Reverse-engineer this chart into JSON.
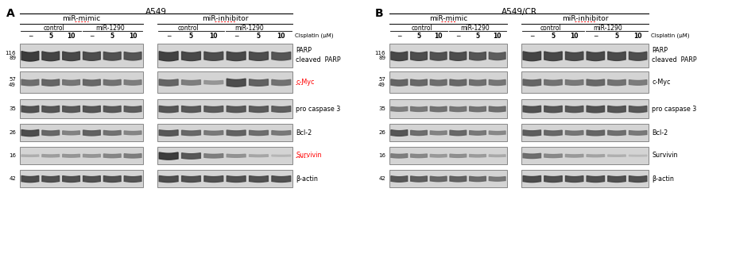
{
  "panel_A_title": "A549",
  "panel_B_title": "A549/CR",
  "panel_label_A": "A",
  "panel_label_B": "B",
  "mimic_label": "miR-mimic",
  "inhibitor_label": "miR-inhibitor",
  "control_label": "control",
  "mir1290_label": "miR-1290",
  "cisplatin_label": "Cisplatin (μM)",
  "dose_labels": [
    "−",
    "5",
    "10",
    "−",
    "5",
    "10"
  ],
  "protein_labels_line1": [
    "PARP",
    "c-Myc",
    "pro caspase 3",
    "Bcl-2",
    "Survivin",
    "β-actin"
  ],
  "protein_labels_line2": [
    "cleaved  PARP",
    "",
    "",
    "",
    "",
    ""
  ],
  "mw_labels": [
    "116\n89",
    "57\n49",
    "35",
    "26",
    "16",
    "42"
  ],
  "red_protein_A": [
    "c-Myc",
    "Survivin"
  ],
  "red_protein_B": [],
  "bg_color": "#ffffff",
  "box_bg": "#d8d8d8",
  "box_edge": "#888888",
  "band_colors_dark": "#1a1a1a",
  "band_colors_mid": "#444444",
  "band_colors_light": "#888888"
}
